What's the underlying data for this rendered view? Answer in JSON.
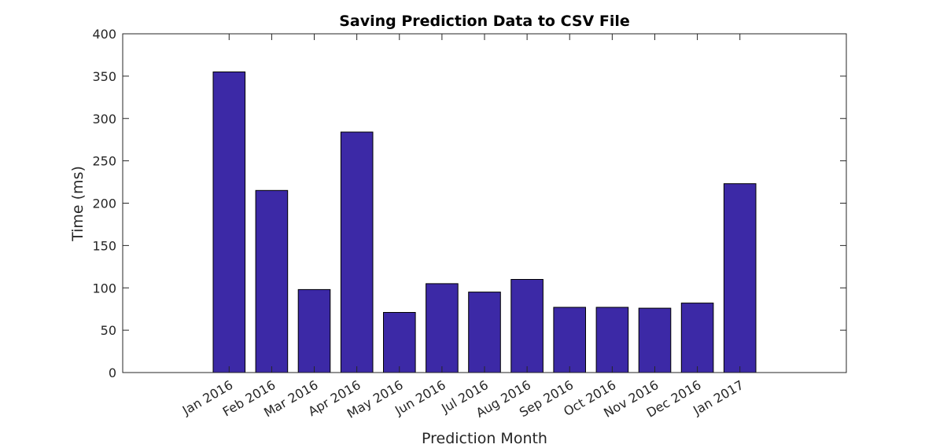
{
  "chart_data": {
    "type": "bar",
    "title": "Saving Prediction Data to CSV File",
    "xlabel": "Prediction Month",
    "ylabel": "Time (ms)",
    "categories": [
      "Jan 2016",
      "Feb 2016",
      "Mar 2016",
      "Apr 2016",
      "May 2016",
      "Jun 2016",
      "Jul 2016",
      "Aug 2016",
      "Sep 2016",
      "Oct 2016",
      "Nov 2016",
      "Dec 2016",
      "Jan 2017"
    ],
    "values": [
      355,
      215,
      98,
      284,
      71,
      105,
      95,
      110,
      77,
      77,
      76,
      82,
      223
    ],
    "ylim": [
      0,
      400
    ],
    "yticks": [
      0,
      50,
      100,
      150,
      200,
      250,
      300,
      350,
      400
    ],
    "grid": false,
    "bar_color": "#3c29a6"
  }
}
